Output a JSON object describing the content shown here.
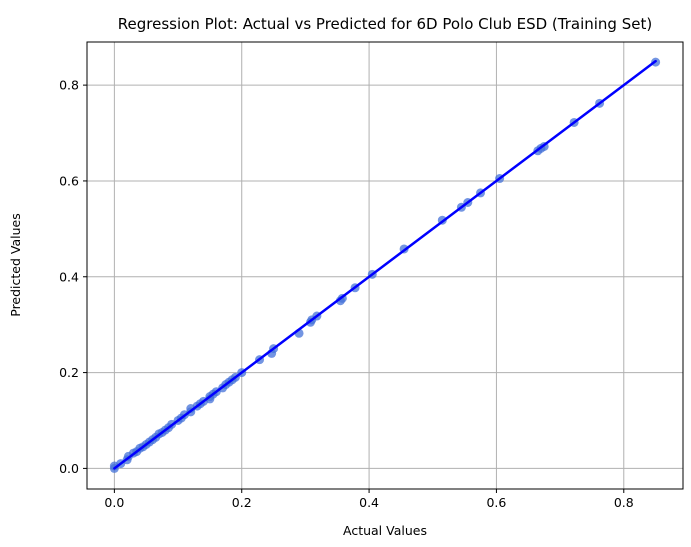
{
  "chart_data": {
    "type": "scatter",
    "title": "Regression Plot: Actual vs Predicted for 6D Polo Club ESD (Training Set)",
    "xlabel": "Actual Values",
    "ylabel": "Predicted Values",
    "xlim": [
      -0.043,
      0.893
    ],
    "ylim": [
      -0.043,
      0.89
    ],
    "xticks": [
      0.0,
      0.2,
      0.4,
      0.6,
      0.8
    ],
    "xtick_labels": [
      "0.0",
      "0.2",
      "0.4",
      "0.6",
      "0.8"
    ],
    "yticks": [
      0.0,
      0.2,
      0.4,
      0.6,
      0.8
    ],
    "ytick_labels": [
      "0.0",
      "0.2",
      "0.4",
      "0.6",
      "0.8"
    ],
    "grid": true,
    "colors": {
      "points": "#4472d8",
      "line": "#0000ff",
      "grid": "#b0b0b0"
    },
    "series": [
      {
        "kind": "points",
        "x": [
          0.0,
          0.0,
          0.01,
          0.02,
          0.022,
          0.03,
          0.035,
          0.04,
          0.045,
          0.05,
          0.055,
          0.06,
          0.065,
          0.07,
          0.075,
          0.08,
          0.085,
          0.09,
          0.1,
          0.105,
          0.11,
          0.12,
          0.12,
          0.13,
          0.135,
          0.14,
          0.15,
          0.15,
          0.155,
          0.16,
          0.17,
          0.175,
          0.18,
          0.185,
          0.19,
          0.2,
          0.228,
          0.247,
          0.25,
          0.29,
          0.308,
          0.31,
          0.318,
          0.355,
          0.358,
          0.378,
          0.405,
          0.455,
          0.515,
          0.545,
          0.555,
          0.575,
          0.605,
          0.665,
          0.67,
          0.675,
          0.722,
          0.762,
          0.85
        ],
        "y": [
          0.0,
          0.005,
          0.01,
          0.018,
          0.025,
          0.032,
          0.035,
          0.042,
          0.045,
          0.05,
          0.055,
          0.06,
          0.065,
          0.072,
          0.075,
          0.08,
          0.085,
          0.092,
          0.1,
          0.105,
          0.112,
          0.118,
          0.125,
          0.13,
          0.135,
          0.14,
          0.145,
          0.15,
          0.155,
          0.16,
          0.168,
          0.175,
          0.18,
          0.185,
          0.19,
          0.2,
          0.227,
          0.24,
          0.25,
          0.282,
          0.305,
          0.31,
          0.318,
          0.35,
          0.355,
          0.377,
          0.405,
          0.458,
          0.518,
          0.545,
          0.555,
          0.575,
          0.605,
          0.663,
          0.668,
          0.672,
          0.722,
          0.762,
          0.848
        ]
      },
      {
        "kind": "regression-line",
        "x": [
          0.0,
          0.85
        ],
        "y": [
          0.0,
          0.85
        ]
      }
    ]
  }
}
